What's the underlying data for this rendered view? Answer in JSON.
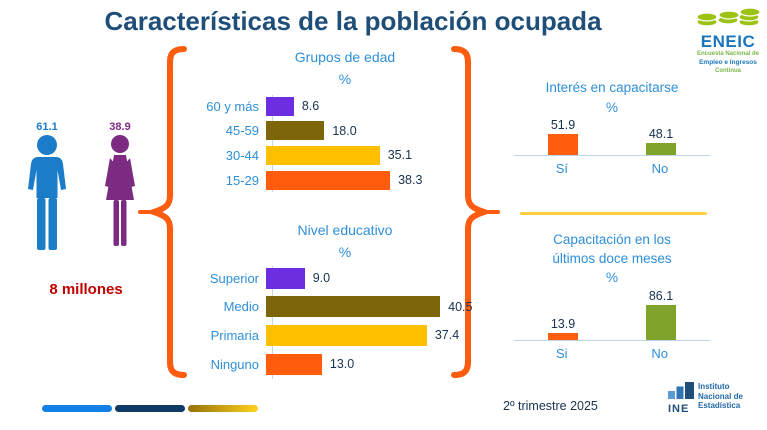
{
  "title": "Características de la población ocupada",
  "eneic_logo": {
    "acronym": "ENEIC",
    "subtitle_line1": "Encuesta Nacional de",
    "subtitle_line2": "Empleo e Ingresos",
    "subtitle_line3": "Continua"
  },
  "population": {
    "male_pct": "61.1",
    "female_pct": "38.9",
    "total": "8 millones",
    "male_color": "#1B7CC9",
    "female_color": "#7D2B82"
  },
  "chart_data": [
    {
      "type": "bar",
      "orientation": "horizontal",
      "title": "Grupos de edad",
      "unit": "%",
      "categories": [
        "60 y más",
        "45-59",
        "30-44",
        "15-29"
      ],
      "values": [
        8.6,
        18.0,
        35.1,
        38.3
      ],
      "value_labels": [
        "8.6",
        "18.0",
        "35.1",
        "38.3"
      ],
      "bar_colors": [
        "#6C2EE0",
        "#7D660A",
        "#FFC000",
        "#FF5C0D"
      ],
      "xlim": [
        0,
        45
      ],
      "grid": false,
      "legend": false
    },
    {
      "type": "bar",
      "orientation": "horizontal",
      "title": "Nivel educativo",
      "unit": "%",
      "categories": [
        "Superior",
        "Medio",
        "Primaria",
        "Ninguno"
      ],
      "values": [
        9.0,
        40.5,
        37.4,
        13.0
      ],
      "value_labels": [
        "9.0",
        "40.5",
        "37.4",
        "13.0"
      ],
      "bar_colors": [
        "#6C2EE0",
        "#7D660A",
        "#FFC000",
        "#FF5C0D"
      ],
      "xlim": [
        0,
        45
      ],
      "grid": false,
      "legend": false
    },
    {
      "type": "bar",
      "orientation": "vertical",
      "title": "Interés en capacitarse",
      "unit": "%",
      "categories": [
        "Sí",
        "No"
      ],
      "values": [
        51.9,
        48.1
      ],
      "value_labels": [
        "51.9",
        "48.1"
      ],
      "bar_colors": [
        "#FF5C0D",
        "#7FA32B"
      ],
      "grid": false,
      "legend": false
    },
    {
      "type": "bar",
      "orientation": "vertical",
      "title_lines": [
        "Capacitación  en los",
        "últimos doce meses"
      ],
      "title": "Capacitación  en los últimos doce meses",
      "unit": "%",
      "categories": [
        "Si",
        "No"
      ],
      "values": [
        13.9,
        86.1
      ],
      "value_labels": [
        "13.9",
        "86.1"
      ],
      "bar_colors": [
        "#FF5C0D",
        "#7FA32B"
      ],
      "grid": false,
      "legend": false
    }
  ],
  "footer": {
    "period": "2º trimestre 2025",
    "ine_logo": {
      "acronym": "INE",
      "name_lines": [
        "Instituto",
        "Nacional de",
        "Estadística"
      ]
    }
  },
  "colors": {
    "title_blue": "#1F4E79",
    "accent_blue": "#2E8FD9",
    "brace_orange": "#FB5C10",
    "value_text": "#17324F",
    "total_red": "#C00000",
    "divider_yellow": "#FFCF40"
  }
}
